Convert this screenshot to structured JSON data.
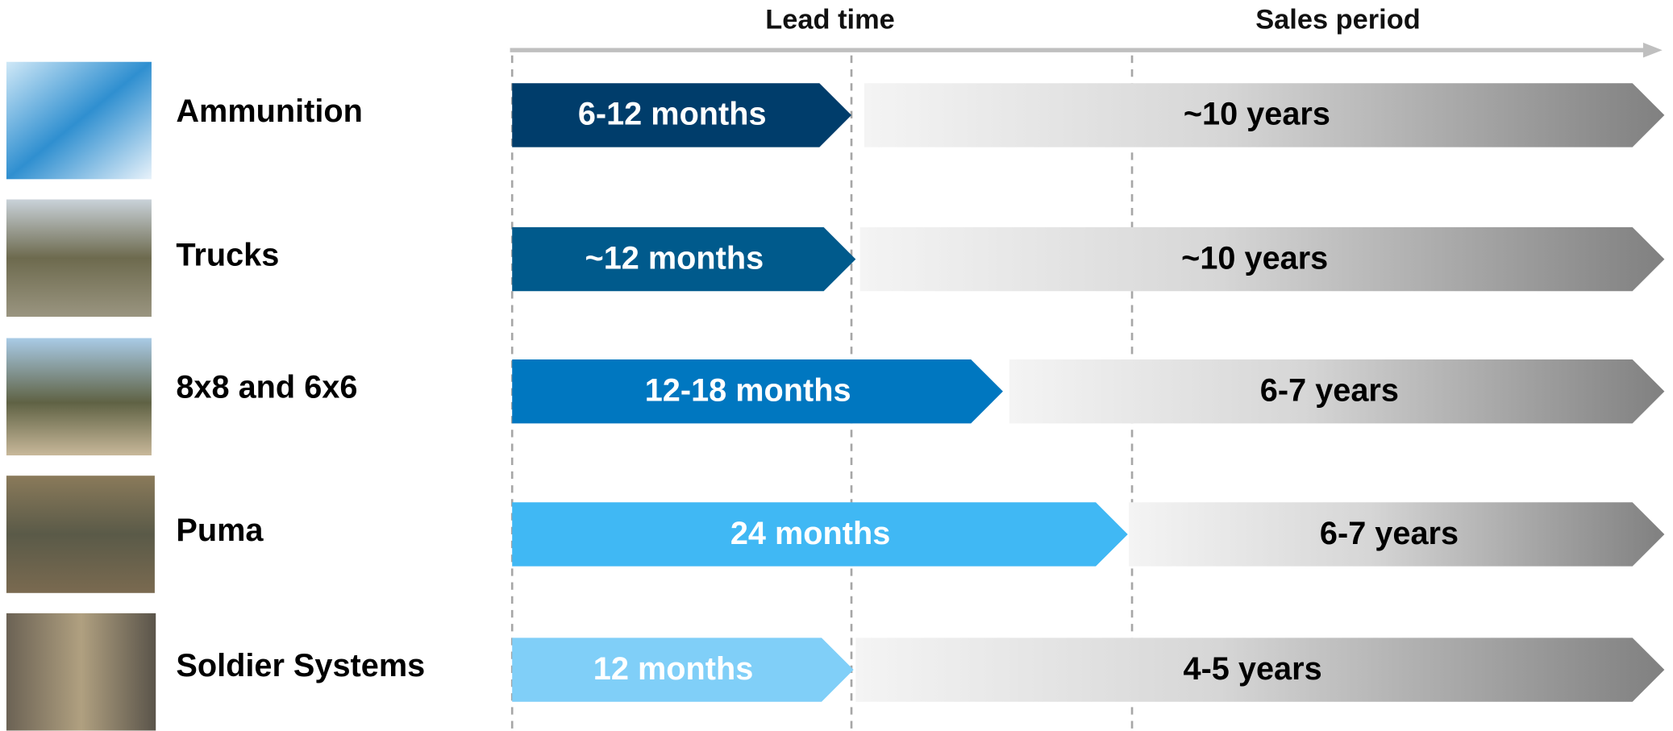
{
  "header": {
    "lead_time": "Lead time",
    "sales_period": "Sales period"
  },
  "rows": [
    {
      "label": "Ammunition",
      "lead_time": "6-12 months",
      "sales_period": "~10 years"
    },
    {
      "label": "Trucks",
      "lead_time": "~12 months",
      "sales_period": "~10 years"
    },
    {
      "label": "8x8 and 6x6",
      "lead_time": "12-18 months",
      "sales_period": "6-7 years"
    },
    {
      "label": "Puma",
      "lead_time": "24 months",
      "sales_period": "6-7 years"
    },
    {
      "label": "Soldier Systems",
      "lead_time": "12 months",
      "sales_period": "4-5 years"
    }
  ]
}
